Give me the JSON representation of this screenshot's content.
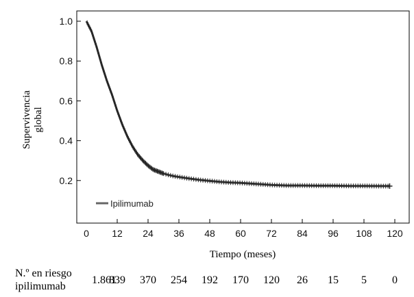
{
  "chart_data": {
    "type": "line",
    "title": "",
    "xlabel": "Tiempo (meses)",
    "ylabel_line1": "Supervivencia",
    "ylabel_line2": "global",
    "xlim": [
      0,
      120
    ],
    "ylim": [
      0,
      1.0
    ],
    "xticks": [
      0,
      12,
      24,
      36,
      48,
      60,
      72,
      84,
      96,
      108,
      120
    ],
    "xtick_labels": [
      "0",
      "12",
      "24",
      "36",
      "48",
      "60",
      "72",
      "84",
      "96",
      "108",
      "120"
    ],
    "yticks": [
      0.2,
      0.4,
      0.6,
      0.8,
      1.0
    ],
    "ytick_labels": [
      "0.2",
      "0.4",
      "0.6",
      "0.8",
      "1.0"
    ],
    "grid": false,
    "legend_position": "bottom-left",
    "series": [
      {
        "name": "Ipilimumab",
        "color": "#333333",
        "x": [
          0,
          2,
          4,
          6,
          8,
          10,
          12,
          14,
          16,
          18,
          20,
          22,
          24,
          26,
          28,
          30,
          32,
          34,
          36,
          40,
          44,
          48,
          52,
          56,
          60,
          66,
          72,
          78,
          84,
          90,
          96,
          102,
          108,
          114,
          118
        ],
        "y": [
          1.0,
          0.95,
          0.87,
          0.78,
          0.7,
          0.63,
          0.55,
          0.48,
          0.42,
          0.37,
          0.33,
          0.3,
          0.275,
          0.255,
          0.245,
          0.235,
          0.228,
          0.222,
          0.218,
          0.21,
          0.203,
          0.198,
          0.193,
          0.19,
          0.188,
          0.183,
          0.178,
          0.175,
          0.175,
          0.174,
          0.174,
          0.173,
          0.173,
          0.172,
          0.172
        ]
      }
    ],
    "risk_table": {
      "header_line1": "N.º en riesgo",
      "row_label": "ipilimumab",
      "values": [
        "1.861",
        "839",
        "370",
        "254",
        "192",
        "170",
        "120",
        "26",
        "15",
        "5",
        "0"
      ]
    }
  }
}
